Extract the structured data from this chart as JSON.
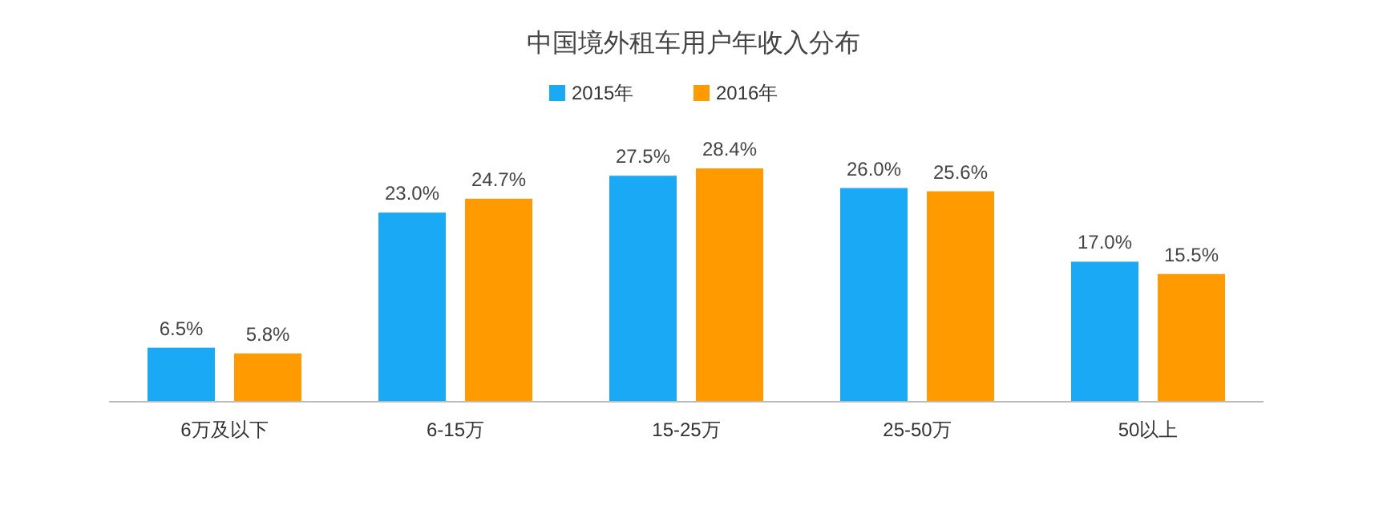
{
  "chart_data": {
    "type": "bar",
    "title": "中国境外租车用户年收入分布",
    "categories": [
      "6万及以下",
      "6-15万",
      "15-25万",
      "25-50万",
      "50以上"
    ],
    "series": [
      {
        "name": "2015年",
        "color": "#1aa9f4",
        "values": [
          6.5,
          23.0,
          27.5,
          26.0,
          17.0
        ],
        "value_labels": [
          "6.5%",
          "23.0%",
          "27.5%",
          "26.0%",
          "17.0%"
        ]
      },
      {
        "name": "2016年",
        "color": "#ff9b00",
        "values": [
          5.8,
          24.7,
          28.4,
          25.6,
          15.5
        ],
        "value_labels": [
          "5.8%",
          "24.7%",
          "28.4%",
          "25.6%",
          "15.5%"
        ]
      }
    ],
    "legend": "top",
    "grid": false
  }
}
